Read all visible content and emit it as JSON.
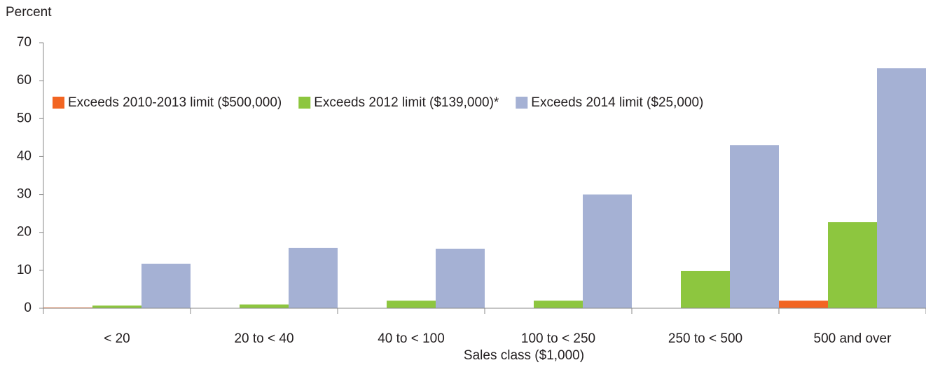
{
  "chart_data": {
    "type": "bar",
    "y_label": "Percent",
    "x_label": "Sales class ($1,000)",
    "categories": [
      "< 20",
      "20 to < 40",
      "40 to < 100",
      "100 to < 250",
      "250 to < 500",
      "500 and over"
    ],
    "series": [
      {
        "name": "Exceeds 2010-2013 limit ($500,000)",
        "color": "#f26522",
        "values": [
          0.2,
          0,
          0,
          0,
          0,
          2
        ]
      },
      {
        "name": "Exceeds 2012 limit ($139,000)*",
        "color": "#8dc63f",
        "values": [
          0.7,
          1,
          2,
          2,
          9.8,
          22.7
        ]
      },
      {
        "name": "Exceeds 2014 limit ($25,000)",
        "color": "#a5b1d4",
        "values": [
          11.7,
          15.9,
          15.7,
          30,
          43,
          63.3
        ]
      }
    ],
    "ylim": [
      0,
      70
    ],
    "yticks": [
      0,
      10,
      20,
      30,
      40,
      50,
      60,
      70
    ],
    "grid": false
  }
}
